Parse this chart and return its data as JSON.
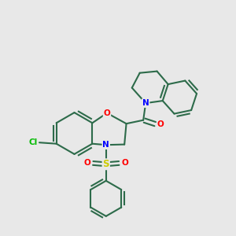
{
  "background_color": "#e8e8e8",
  "bond_color": "#2d6b4a",
  "atom_colors": {
    "O": "#ff0000",
    "N": "#0000ff",
    "S": "#cccc00",
    "Cl": "#00bb00",
    "C": "#2d6b4a"
  },
  "figsize": [
    3.0,
    3.0
  ],
  "dpi": 100
}
